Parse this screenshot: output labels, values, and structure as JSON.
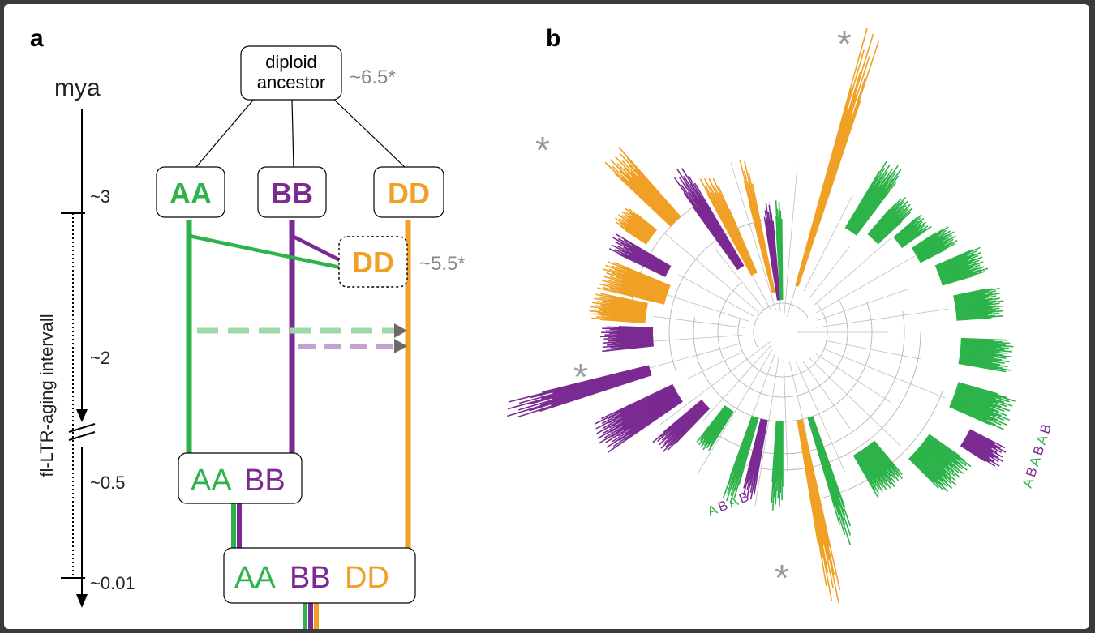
{
  "panel_a": {
    "label": "a",
    "axis_label": "mya",
    "interval_label": "fl-LTR-aging intervall",
    "ticks": [
      "~3",
      "~2",
      "~0.5",
      "~0.01"
    ],
    "ancestor_line1": "diploid",
    "ancestor_line2": "ancestor",
    "ancestor_age": "~6.5*",
    "genomes": {
      "aa": "AA",
      "bb": "BB",
      "dd": "DD",
      "dd_hybrid": "DD",
      "dd_hybrid_age": "~5.5*",
      "tetraploid_a": "AA",
      "tetraploid_b": "BB",
      "hexaploid_a": "AA",
      "hexaploid_b": "BB",
      "hexaploid_d": "DD"
    }
  },
  "panel_b": {
    "label": "b",
    "star": "*",
    "label_lower": [
      "A",
      "B",
      "A",
      "B"
    ],
    "label_right": [
      "A",
      "B",
      "A",
      "B",
      "A",
      "B"
    ]
  },
  "colors": {
    "A": "#2db34a",
    "B": "#7b2a92",
    "D": "#f0a024",
    "gray": "#888888",
    "A_light": "#9fd9a8",
    "B_light": "#c3a2d2"
  }
}
